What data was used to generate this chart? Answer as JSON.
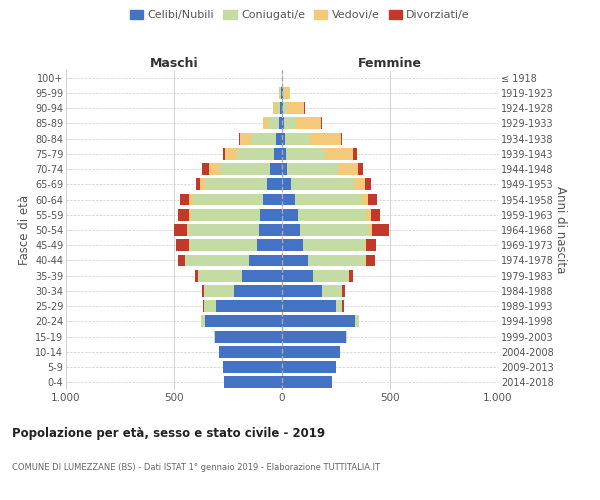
{
  "age_groups": [
    "0-4",
    "5-9",
    "10-14",
    "15-19",
    "20-24",
    "25-29",
    "30-34",
    "35-39",
    "40-44",
    "45-49",
    "50-54",
    "55-59",
    "60-64",
    "65-69",
    "70-74",
    "75-79",
    "80-84",
    "85-89",
    "90-94",
    "95-99",
    "100+"
  ],
  "birth_years": [
    "2014-2018",
    "2009-2013",
    "2004-2008",
    "1999-2003",
    "1994-1998",
    "1989-1993",
    "1984-1988",
    "1979-1983",
    "1974-1978",
    "1969-1973",
    "1964-1968",
    "1959-1963",
    "1954-1958",
    "1949-1953",
    "1944-1948",
    "1939-1943",
    "1934-1938",
    "1929-1933",
    "1924-1928",
    "1919-1923",
    "≤ 1918"
  ],
  "colors": {
    "celibi": "#4472c4",
    "coniugati": "#c5dba4",
    "vedovi": "#f5c97a",
    "divorziati": "#c0392b"
  },
  "maschi": {
    "celibi": [
      270,
      275,
      290,
      310,
      355,
      305,
      220,
      185,
      155,
      115,
      105,
      100,
      90,
      70,
      55,
      35,
      30,
      15,
      10,
      5,
      0
    ],
    "coniugati": [
      0,
      0,
      0,
      5,
      20,
      55,
      140,
      205,
      295,
      310,
      330,
      320,
      320,
      285,
      230,
      175,
      115,
      50,
      15,
      5,
      0
    ],
    "vedovi": [
      0,
      0,
      0,
      0,
      0,
      0,
      0,
      0,
      0,
      5,
      5,
      10,
      20,
      25,
      55,
      55,
      50,
      25,
      15,
      5,
      0
    ],
    "divorziati": [
      0,
      0,
      0,
      0,
      0,
      5,
      10,
      15,
      30,
      60,
      60,
      50,
      40,
      20,
      30,
      10,
      5,
      0,
      0,
      0,
      0
    ]
  },
  "femmine": {
    "celibi": [
      230,
      250,
      270,
      295,
      340,
      250,
      185,
      145,
      120,
      95,
      85,
      75,
      60,
      40,
      25,
      20,
      15,
      10,
      5,
      5,
      0
    ],
    "coniugati": [
      0,
      0,
      0,
      5,
      15,
      30,
      95,
      165,
      265,
      290,
      320,
      315,
      310,
      295,
      235,
      180,
      115,
      55,
      20,
      5,
      0
    ],
    "vedovi": [
      0,
      0,
      0,
      0,
      0,
      0,
      0,
      0,
      5,
      5,
      10,
      20,
      30,
      50,
      90,
      130,
      145,
      115,
      75,
      25,
      5
    ],
    "divorziati": [
      0,
      0,
      0,
      0,
      0,
      5,
      10,
      20,
      40,
      45,
      80,
      45,
      40,
      25,
      25,
      15,
      5,
      5,
      5,
      0,
      0
    ]
  },
  "title": "Popolazione per età, sesso e stato civile - 2019",
  "subtitle": "COMUNE DI LUMEZZANE (BS) - Dati ISTAT 1° gennaio 2019 - Elaborazione TUTTITALIA.IT",
  "xlabel_left": "Maschi",
  "xlabel_right": "Femmine",
  "ylabel_left": "Fasce di età",
  "ylabel_right": "Anni di nascita",
  "xlim": 1000,
  "legend_labels": [
    "Celibi/Nubili",
    "Coniugati/e",
    "Vedovi/e",
    "Divorziati/e"
  ]
}
